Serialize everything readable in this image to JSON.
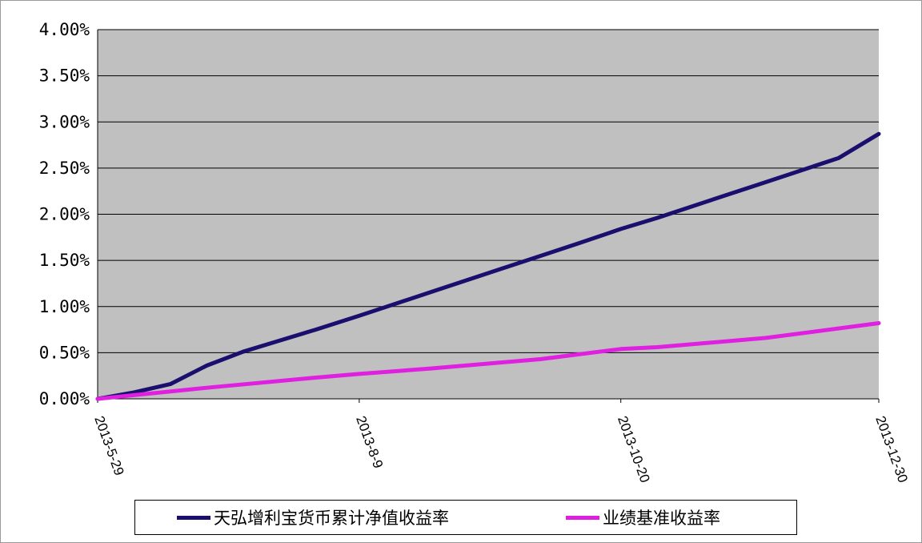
{
  "chart_data": {
    "type": "line",
    "x_ticks": [
      "2013-5-29",
      "2013-8-9",
      "2013-10-20",
      "2013-12-30"
    ],
    "y_ticks": [
      "0.00%",
      "0.50%",
      "1.00%",
      "1.50%",
      "2.00%",
      "2.50%",
      "3.00%",
      "3.50%",
      "4.00%"
    ],
    "ylim": [
      0,
      4.0
    ],
    "x_range": [
      "2013-05-29",
      "2013-12-30"
    ],
    "grid": true,
    "legend_position": "bottom",
    "plot_background": "#c0c0c0",
    "series": [
      {
        "name": "天弘增利宝货币累计净值收益率",
        "color": "#1a0f6e",
        "points": [
          [
            "2013-05-29",
            0.0
          ],
          [
            "2013-06-08",
            0.07
          ],
          [
            "2013-06-18",
            0.16
          ],
          [
            "2013-06-28",
            0.36
          ],
          [
            "2013-07-08",
            0.51
          ],
          [
            "2013-07-18",
            0.63
          ],
          [
            "2013-07-28",
            0.75
          ],
          [
            "2013-08-09",
            0.9
          ],
          [
            "2013-08-19",
            1.03
          ],
          [
            "2013-08-29",
            1.16
          ],
          [
            "2013-09-08",
            1.29
          ],
          [
            "2013-09-18",
            1.42
          ],
          [
            "2013-09-28",
            1.55
          ],
          [
            "2013-10-08",
            1.68
          ],
          [
            "2013-10-20",
            1.84
          ],
          [
            "2013-10-30",
            1.96
          ],
          [
            "2013-11-09",
            2.09
          ],
          [
            "2013-11-19",
            2.22
          ],
          [
            "2013-11-29",
            2.35
          ],
          [
            "2013-12-09",
            2.48
          ],
          [
            "2013-12-19",
            2.61
          ],
          [
            "2013-12-30",
            2.87
          ]
        ]
      },
      {
        "name": "业绩基准收益率",
        "color": "#e020e0",
        "points": [
          [
            "2013-05-29",
            0.0
          ],
          [
            "2013-06-28",
            0.12
          ],
          [
            "2013-07-28",
            0.23
          ],
          [
            "2013-08-09",
            0.27
          ],
          [
            "2013-08-29",
            0.33
          ],
          [
            "2013-09-28",
            0.43
          ],
          [
            "2013-10-20",
            0.54
          ],
          [
            "2013-10-30",
            0.56
          ],
          [
            "2013-11-29",
            0.66
          ],
          [
            "2013-12-30",
            0.82
          ]
        ]
      }
    ]
  }
}
